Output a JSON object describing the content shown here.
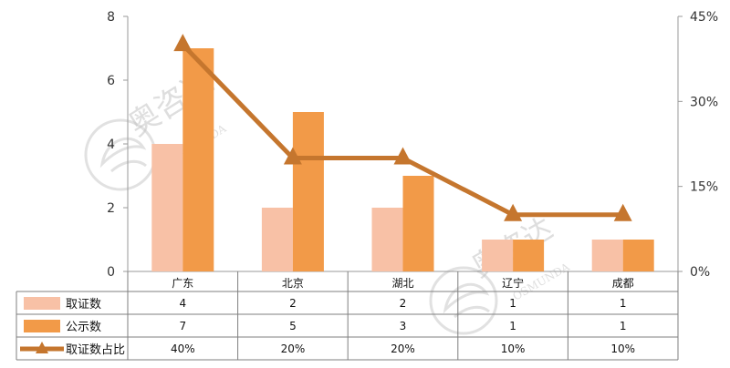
{
  "chart_data": {
    "type": "bar",
    "categories": [
      "广东",
      "北京",
      "湖北",
      "辽宁",
      "成都"
    ],
    "series": [
      {
        "name": "取证数",
        "kind": "bar",
        "axis": "left",
        "values": [
          4,
          2,
          2,
          1,
          1
        ],
        "color": "#f8c1a6"
      },
      {
        "name": "公示数",
        "kind": "bar",
        "axis": "left",
        "values": [
          7,
          5,
          3,
          1,
          1
        ],
        "color": "#f29a48"
      },
      {
        "name": "取证数占比",
        "kind": "line",
        "axis": "right",
        "values": [
          40,
          20,
          20,
          10,
          10
        ],
        "color": "#c5762e"
      }
    ],
    "y_left": {
      "ylim": [
        0,
        8
      ],
      "ticks": [
        "0",
        "2",
        "4",
        "6",
        "8"
      ],
      "tick_values": [
        0,
        2,
        4,
        6,
        8
      ]
    },
    "y_right": {
      "ylim": [
        0,
        45
      ],
      "ticks": [
        "0%",
        "15%",
        "30%",
        "45%"
      ],
      "tick_values": [
        0,
        15,
        30,
        45
      ]
    },
    "table": {
      "rows": [
        {
          "label": "取证数",
          "cells": [
            "4",
            "2",
            "2",
            "1",
            "1"
          ]
        },
        {
          "label": "公示数",
          "cells": [
            "7",
            "5",
            "3",
            "1",
            "1"
          ]
        },
        {
          "label": "取证数占比",
          "cells": [
            "40%",
            "20%",
            "20%",
            "10%",
            "10%"
          ]
        }
      ]
    },
    "watermark": {
      "text_cn": "奥咨达",
      "text_en": "OSMUNDA"
    },
    "grid": false
  }
}
